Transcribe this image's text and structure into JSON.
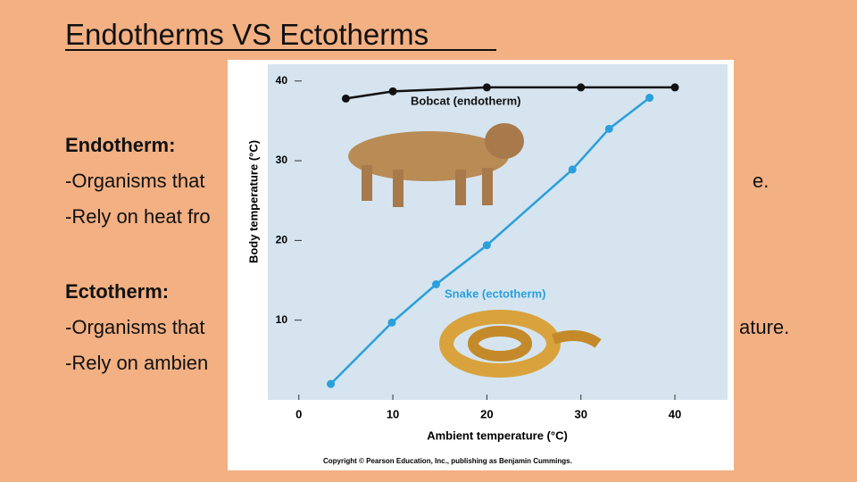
{
  "slide": {
    "title": "Endotherms VS Ectotherms",
    "body": [
      "Endotherm:",
      "-Organisms that",
      "e.",
      "-Rely on heat fro",
      "Ectotherm:",
      "-Organisms that",
      "ature.",
      "-Rely on ambien"
    ]
  },
  "chart_data": {
    "type": "line",
    "x_label": "Ambient temperature (°C)",
    "y_label": "Body temperature (°C)",
    "copyright": "Copyright © Pearson Education, Inc., publishing as Benjamin Cummings.",
    "xlim": [
      -3.3,
      45.6
    ],
    "ylim": [
      0,
      42.1
    ],
    "xticks": [
      0,
      10,
      20,
      30,
      40
    ],
    "yticks": [
      10,
      20,
      30,
      40
    ],
    "series": [
      {
        "name": "Bobcat (endotherm)",
        "color": "#111111",
        "x": [
          5,
          10,
          20,
          30,
          40
        ],
        "values": [
          37.8,
          38.7,
          39.2,
          39.2,
          39.2
        ]
      },
      {
        "name": "Snake (ectotherm)",
        "color": "#2a9fdc",
        "x": [
          3.4,
          9.9,
          14.6,
          20,
          29.1,
          33,
          37.3
        ],
        "values": [
          2,
          9.7,
          14.5,
          19.4,
          28.9,
          34,
          37.9
        ]
      }
    ]
  }
}
